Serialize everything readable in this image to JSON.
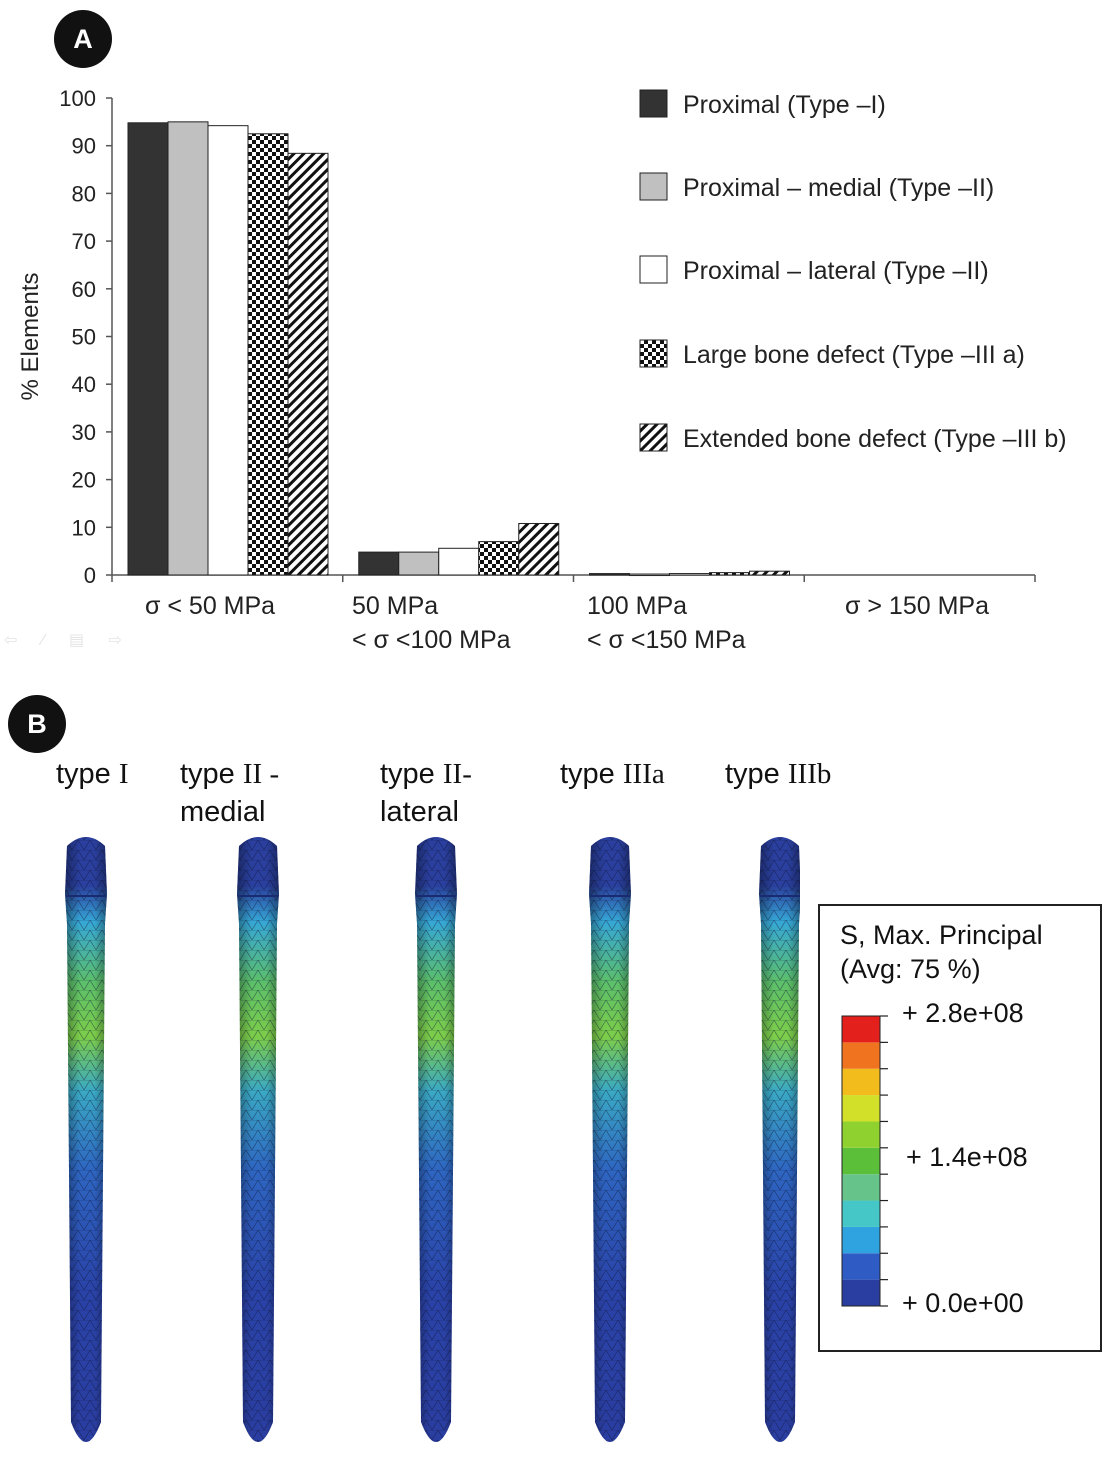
{
  "panels": {
    "a": "A",
    "b": "B"
  },
  "chart_data": {
    "type": "bar",
    "ylabel": "% Elements",
    "ylim": [
      0,
      100
    ],
    "yticks": [
      0,
      10,
      20,
      30,
      40,
      50,
      60,
      70,
      80,
      90,
      100
    ],
    "categories": [
      [
        "σ < 50 MPa"
      ],
      [
        "50 MPa",
        "< σ <100 MPa"
      ],
      [
        "100 MPa",
        "< σ <150 MPa"
      ],
      [
        "σ > 150 MPa"
      ]
    ],
    "series": [
      {
        "name": "Proximal (Type –I)",
        "pattern": "solid-dark",
        "values": [
          94.8,
          4.8,
          0.3,
          0
        ]
      },
      {
        "name": "Proximal – medial (Type –II)",
        "pattern": "solid-gray",
        "values": [
          95.0,
          4.8,
          0.2,
          0
        ]
      },
      {
        "name": "Proximal – lateral (Type –II)",
        "pattern": "white",
        "values": [
          94.2,
          5.6,
          0.3,
          0
        ]
      },
      {
        "name": "Large bone defect (Type –III a)",
        "pattern": "checker",
        "values": [
          92.5,
          7.0,
          0.5,
          0
        ]
      },
      {
        "name": "Extended bone defect (Type –III b)",
        "pattern": "hatch",
        "values": [
          88.4,
          10.8,
          0.8,
          0
        ]
      }
    ],
    "legend_position": "top-right",
    "colors": {
      "dark": "#333333",
      "gray": "#c0c0c0",
      "white": "#ffffff"
    }
  },
  "fem": {
    "labels": [
      {
        "lines": [
          [
            "type ",
            "I"
          ]
        ]
      },
      {
        "lines": [
          [
            "type ",
            "II -"
          ],
          [
            "medial",
            ""
          ]
        ]
      },
      {
        "lines": [
          [
            "type ",
            "II-"
          ],
          [
            "lateral",
            ""
          ]
        ]
      },
      {
        "lines": [
          [
            "type ",
            "IIIa"
          ]
        ]
      },
      {
        "lines": [
          [
            "type ",
            "IIIb"
          ]
        ]
      }
    ],
    "legend": {
      "title_line1": "S, Max. Principal",
      "title_line2": "(Avg: 75 %)",
      "tick_max": "+ 2.8e+08",
      "tick_mid": "+ 1.4e+08",
      "tick_min": "+ 0.0e+00",
      "colors": [
        "#2a3da0",
        "#2f5cc4",
        "#2fa3e0",
        "#45c7c8",
        "#66c48a",
        "#5cbf3a",
        "#8fd12f",
        "#d2e02a",
        "#f2bd1c",
        "#f0731f",
        "#e3201c"
      ]
    }
  }
}
